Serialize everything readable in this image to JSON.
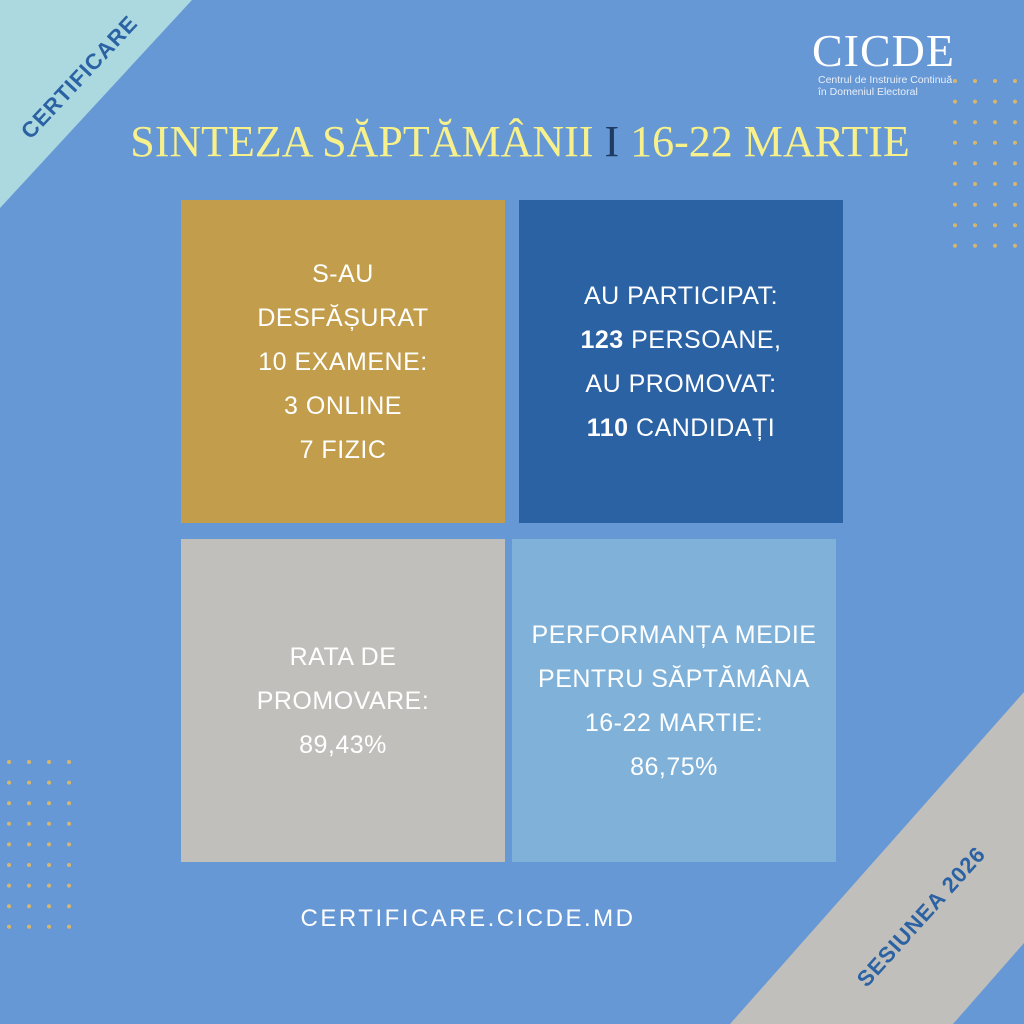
{
  "corner_top_left": {
    "label": "CERTIFICARE"
  },
  "corner_bottom_right": {
    "label": "SESIUNEA 2026"
  },
  "logo": {
    "name": "CICDE",
    "subtitle_line1": "Centrul de Instruire Continuă",
    "subtitle_line2": "în Domeniul Electoral"
  },
  "title": {
    "left": "SINTEZA SĂPTĂMÂNII",
    "separator": "I",
    "right": "16-22 MARTIE"
  },
  "boxes": {
    "exams": {
      "lines": [
        "S-AU",
        "DESFĂȘURAT",
        "10 EXAMENE:",
        "3 ONLINE",
        "7 FIZIC"
      ]
    },
    "participants": {
      "line1": "AU PARTICIPAT:",
      "count1": "123",
      "line2_rest": " PERSOANE,",
      "line3": "AU PROMOVAT:",
      "count2": "110",
      "line4_rest": " CANDIDAȚI"
    },
    "pass_rate": {
      "lines": [
        "RATA DE",
        "PROMOVARE:",
        "89,43%"
      ]
    },
    "performance": {
      "lines": [
        "PERFORMANȚA MEDIE",
        "PENTRU SĂPTĂMÂNA",
        "16-22 MARTIE:",
        "86,75%"
      ]
    }
  },
  "footer": {
    "url": "CERTIFICARE.CICDE.MD"
  },
  "colors": {
    "background": "#6698d5",
    "corner_top": "#acd9e0",
    "corner_bottom": "#c0bfbb",
    "gold": "#c29d4b",
    "dark_blue": "#2b62a4",
    "gray": "#c0bfbb",
    "light_blue": "#80b2d9",
    "title_yellow": "#f8f08a",
    "dots": "#d9b56a"
  }
}
